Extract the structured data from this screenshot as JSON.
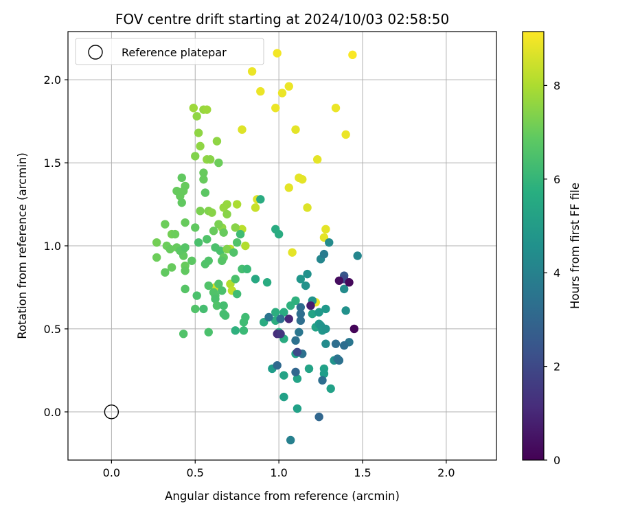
{
  "chart_data": {
    "type": "scatter",
    "title": "FOV centre drift starting at 2024/10/03 02:58:50",
    "xlabel": "Angular distance from reference (arcmin)",
    "ylabel": "Rotation from reference (arcmin)",
    "xlim": [
      -0.26,
      2.3
    ],
    "ylim": [
      -0.29,
      2.29
    ],
    "xticks": [
      "0.0",
      "0.5",
      "1.0",
      "1.5",
      "2.0"
    ],
    "yticks": [
      "0.0",
      "0.5",
      "1.0",
      "1.5",
      "2.0"
    ],
    "grid": true,
    "legend": {
      "position": "top-left",
      "entries": [
        "Reference platepar"
      ]
    },
    "reference_point": {
      "x": 0.0,
      "y": 0.0,
      "marker": "hollow-circle"
    },
    "colorbar": {
      "label": "Hours from first FF file",
      "range": [
        0,
        9.15
      ],
      "ticks": [
        "0",
        "2",
        "4",
        "6",
        "8"
      ],
      "colormap": "viridis"
    },
    "points": [
      [
        1.44,
        2.15,
        9.1
      ],
      [
        0.99,
        2.16,
        9.0
      ],
      [
        0.84,
        2.05,
        8.9
      ],
      [
        1.06,
        1.96,
        8.9
      ],
      [
        1.02,
        1.92,
        8.9
      ],
      [
        0.89,
        1.93,
        8.9
      ],
      [
        0.98,
        1.83,
        8.9
      ],
      [
        1.34,
        1.83,
        8.9
      ],
      [
        1.4,
        1.67,
        8.9
      ],
      [
        1.1,
        1.7,
        8.8
      ],
      [
        0.78,
        1.7,
        8.7
      ],
      [
        1.23,
        1.52,
        8.8
      ],
      [
        1.12,
        1.41,
        8.8
      ],
      [
        1.14,
        1.4,
        8.8
      ],
      [
        1.06,
        1.35,
        8.8
      ],
      [
        1.17,
        1.23,
        8.7
      ],
      [
        0.87,
        1.28,
        8.7
      ],
      [
        0.86,
        1.23,
        8.4
      ],
      [
        1.28,
        1.1,
        8.8
      ],
      [
        1.27,
        1.05,
        8.8
      ],
      [
        1.08,
        0.96,
        8.8
      ],
      [
        1.22,
        0.66,
        8.9
      ],
      [
        0.78,
        1.1,
        8.2
      ],
      [
        0.71,
        0.98,
        8.2
      ],
      [
        0.8,
        1.0,
        8.1
      ],
      [
        0.62,
        0.75,
        8.6
      ],
      [
        0.71,
        0.77,
        8.1
      ],
      [
        0.72,
        0.73,
        8.3
      ],
      [
        0.49,
        1.83,
        7.8
      ],
      [
        0.55,
        1.82,
        7.7
      ],
      [
        0.57,
        1.82,
        7.8
      ],
      [
        0.51,
        1.78,
        7.6
      ],
      [
        0.52,
        1.68,
        7.6
      ],
      [
        0.63,
        1.63,
        7.6
      ],
      [
        0.53,
        1.6,
        7.6
      ],
      [
        0.57,
        1.52,
        7.6
      ],
      [
        0.59,
        1.52,
        7.5
      ],
      [
        0.5,
        1.54,
        7.4
      ],
      [
        0.64,
        1.5,
        7.1
      ],
      [
        0.75,
        1.25,
        8.0
      ],
      [
        0.69,
        1.25,
        7.7
      ],
      [
        0.67,
        1.23,
        7.7
      ],
      [
        0.69,
        1.19,
        7.5
      ],
      [
        0.58,
        1.21,
        7.4
      ],
      [
        0.6,
        1.2,
        7.5
      ],
      [
        0.53,
        1.21,
        7.3
      ],
      [
        0.66,
        1.11,
        7.6
      ],
      [
        0.74,
        1.11,
        7.5
      ],
      [
        0.64,
        1.13,
        7.3
      ],
      [
        0.61,
        1.09,
        7.0
      ],
      [
        0.67,
        1.08,
        7.0
      ],
      [
        0.55,
        1.44,
        7.0
      ],
      [
        0.55,
        1.4,
        7.0
      ],
      [
        0.44,
        1.36,
        7.0
      ],
      [
        0.43,
        1.33,
        7.0
      ],
      [
        0.39,
        1.33,
        7.0
      ],
      [
        0.41,
        1.3,
        7.0
      ],
      [
        0.42,
        1.26,
        6.9
      ],
      [
        0.42,
        1.41,
        6.9
      ],
      [
        0.56,
        1.32,
        6.8
      ],
      [
        0.36,
        1.07,
        7.2
      ],
      [
        0.38,
        1.07,
        7.1
      ],
      [
        0.32,
        1.13,
        7.1
      ],
      [
        0.44,
        1.14,
        7.0
      ],
      [
        0.5,
        1.11,
        6.9
      ],
      [
        0.27,
        1.02,
        7.2
      ],
      [
        0.33,
        1.0,
        7.1
      ],
      [
        0.35,
        0.98,
        7.0
      ],
      [
        0.39,
        0.99,
        7.0
      ],
      [
        0.43,
        0.98,
        6.9
      ],
      [
        0.43,
        0.94,
        6.9
      ],
      [
        0.41,
        0.97,
        6.8
      ],
      [
        0.44,
        0.99,
        6.7
      ],
      [
        0.27,
        0.93,
        7.1
      ],
      [
        0.36,
        0.87,
        7.0
      ],
      [
        0.44,
        0.88,
        7.0
      ],
      [
        0.44,
        0.85,
        6.9
      ],
      [
        0.32,
        0.84,
        6.9
      ],
      [
        0.48,
        0.91,
        6.8
      ],
      [
        0.52,
        1.02,
        6.5
      ],
      [
        0.57,
        1.04,
        6.6
      ],
      [
        0.62,
        0.99,
        6.5
      ],
      [
        0.65,
        0.97,
        6.5
      ],
      [
        0.67,
        0.93,
        6.9
      ],
      [
        0.69,
        0.98,
        7.4
      ],
      [
        0.75,
        1.02,
        6.6
      ],
      [
        0.73,
        0.96,
        6.6
      ],
      [
        0.66,
        0.91,
        6.7
      ],
      [
        0.58,
        0.91,
        6.6
      ],
      [
        0.56,
        0.89,
        6.6
      ],
      [
        0.77,
        1.07,
        6.3
      ],
      [
        0.58,
        0.76,
        6.6
      ],
      [
        0.61,
        0.72,
        6.6
      ],
      [
        0.64,
        0.77,
        6.6
      ],
      [
        0.62,
        0.7,
        6.6
      ],
      [
        0.66,
        0.73,
        6.5
      ],
      [
        0.74,
        0.8,
        6.5
      ],
      [
        0.44,
        0.74,
        6.7
      ],
      [
        0.51,
        0.7,
        6.5
      ],
      [
        0.62,
        0.68,
        6.5
      ],
      [
        0.63,
        0.64,
        6.6
      ],
      [
        0.67,
        0.64,
        6.4
      ],
      [
        0.67,
        0.59,
        6.4
      ],
      [
        0.68,
        0.58,
        6.4
      ],
      [
        0.5,
        0.62,
        6.6
      ],
      [
        0.55,
        0.62,
        6.4
      ],
      [
        0.43,
        0.47,
        6.6
      ],
      [
        0.58,
        0.48,
        6.5
      ],
      [
        0.78,
        0.86,
        6.4
      ],
      [
        0.81,
        0.86,
        6.2
      ],
      [
        0.75,
        0.71,
        6.3
      ],
      [
        0.8,
        0.57,
        6.3
      ],
      [
        0.79,
        0.54,
        6.3
      ],
      [
        0.79,
        0.49,
        6.2
      ],
      [
        0.74,
        0.49,
        5.8
      ],
      [
        0.98,
        1.1,
        5.6
      ],
      [
        1.0,
        1.07,
        5.6
      ],
      [
        0.89,
        1.28,
        5.6
      ],
      [
        0.86,
        0.8,
        5.5
      ],
      [
        0.93,
        0.78,
        5.6
      ],
      [
        0.98,
        0.6,
        5.7
      ],
      [
        1.03,
        0.6,
        5.6
      ],
      [
        1.07,
        0.64,
        5.8
      ],
      [
        1.1,
        0.67,
        5.8
      ],
      [
        0.98,
        0.55,
        5.7
      ],
      [
        0.91,
        0.54,
        5.6
      ],
      [
        1.0,
        0.48,
        5.7
      ],
      [
        1.03,
        0.44,
        5.6
      ],
      [
        1.1,
        0.35,
        5.2
      ],
      [
        1.11,
        0.2,
        5.3
      ],
      [
        1.03,
        0.22,
        5.3
      ],
      [
        1.03,
        0.09,
        5.2
      ],
      [
        1.11,
        0.02,
        5.2
      ],
      [
        1.2,
        0.59,
        5.3
      ],
      [
        1.22,
        0.51,
        5.3
      ],
      [
        1.18,
        0.26,
        5.3
      ],
      [
        1.27,
        0.26,
        5.2
      ],
      [
        1.31,
        0.14,
        5.2
      ],
      [
        1.27,
        0.23,
        5.1
      ],
      [
        0.96,
        0.26,
        5.0
      ],
      [
        1.33,
        0.31,
        4.7
      ],
      [
        1.2,
        0.67,
        4.7
      ],
      [
        1.17,
        0.83,
        4.6
      ],
      [
        1.13,
        0.8,
        4.8
      ],
      [
        1.16,
        0.76,
        4.6
      ],
      [
        1.24,
        0.6,
        4.9
      ],
      [
        1.28,
        0.62,
        4.9
      ],
      [
        1.24,
        0.53,
        4.9
      ],
      [
        1.25,
        0.52,
        4.7
      ],
      [
        1.26,
        0.49,
        4.8
      ],
      [
        1.28,
        0.5,
        4.7
      ],
      [
        1.28,
        0.41,
        4.4
      ],
      [
        1.39,
        0.74,
        4.4
      ],
      [
        1.4,
        0.61,
        4.6
      ],
      [
        1.3,
        1.02,
        4.4
      ],
      [
        1.47,
        0.94,
        4.2
      ],
      [
        1.25,
        0.92,
        4.2
      ],
      [
        1.27,
        0.95,
        3.8
      ],
      [
        1.07,
        -0.17,
        4.0
      ],
      [
        1.24,
        -0.03,
        3.0
      ],
      [
        1.26,
        0.19,
        3.3
      ],
      [
        1.42,
        0.42,
        3.6
      ],
      [
        1.39,
        0.4,
        3.3
      ],
      [
        1.34,
        0.41,
        3.3
      ],
      [
        1.35,
        0.32,
        3.5
      ],
      [
        1.36,
        0.31,
        3.4
      ],
      [
        1.1,
        0.43,
        3.4
      ],
      [
        1.12,
        0.48,
        3.6
      ],
      [
        1.13,
        0.59,
        3.3
      ],
      [
        1.13,
        0.55,
        3.3
      ],
      [
        1.13,
        0.63,
        3.3
      ],
      [
        0.94,
        0.57,
        3.5
      ],
      [
        1.01,
        0.56,
        3.3
      ],
      [
        1.1,
        0.24,
        3.0
      ],
      [
        0.99,
        0.28,
        3.1
      ],
      [
        1.14,
        0.35,
        3.4
      ],
      [
        1.39,
        0.82,
        2.5
      ],
      [
        1.39,
        0.8,
        2.1
      ],
      [
        1.06,
        0.56,
        1.0
      ],
      [
        0.99,
        0.47,
        1.2
      ],
      [
        1.01,
        0.47,
        1.4
      ],
      [
        1.11,
        0.36,
        2.0
      ],
      [
        1.36,
        0.79,
        0.3
      ],
      [
        1.42,
        0.78,
        0.2
      ],
      [
        1.45,
        0.5,
        0.1
      ],
      [
        1.19,
        0.64,
        0.7
      ]
    ]
  }
}
